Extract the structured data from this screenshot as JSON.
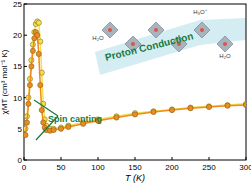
{
  "chart_data": {
    "type": "scatter",
    "x_label": "T (K)",
    "y_label": "χMT (cm³ mol⁻¹ K)",
    "xlim": [
      0,
      300
    ],
    "xticks": [
      0,
      50,
      100,
      150,
      200,
      250,
      300
    ],
    "ylim": [
      0,
      25
    ],
    "yticks": [
      0,
      5,
      10,
      15,
      20,
      25
    ],
    "annotations": [
      "Proton Conduction",
      "Spin canting",
      "H₃O⁺",
      "H₂O",
      "H₂O"
    ],
    "series": [
      {
        "color": "#f4e04d",
        "marker": "circle",
        "line_style": "solid",
        "x": [
          2,
          4,
          6,
          8,
          10,
          12,
          14,
          16,
          18,
          20,
          22,
          24,
          26,
          28,
          30,
          35,
          40,
          50,
          60,
          80,
          100,
          125,
          150,
          175,
          200,
          225,
          250,
          275,
          300
        ],
        "values": [
          5,
          7,
          10,
          13,
          16,
          18.5,
          20.5,
          21.8,
          22.2,
          22,
          19,
          14,
          9,
          6.5,
          5.5,
          5,
          5,
          5.2,
          5.5,
          6,
          6.5,
          7,
          7.5,
          7.8,
          8.1,
          8.4,
          8.6,
          8.8,
          9
        ]
      },
      {
        "color": "#f08a1e",
        "marker": "circle",
        "line_style": "solid",
        "x": [
          2,
          4,
          6,
          8,
          10,
          12,
          14,
          16,
          18,
          20,
          22,
          24,
          26,
          28,
          30,
          35,
          40,
          50,
          60,
          80,
          100,
          125,
          150,
          175,
          200,
          225,
          250,
          275,
          300
        ],
        "values": [
          4,
          6,
          9,
          12,
          15,
          17.5,
          19.5,
          20.5,
          20,
          17,
          12,
          8,
          6,
          5.2,
          4.8,
          4.7,
          4.8,
          5,
          5.3,
          5.8,
          6.3,
          6.8,
          7.3,
          7.7,
          8,
          8.3,
          8.5,
          8.7,
          8.8
        ]
      }
    ]
  }
}
